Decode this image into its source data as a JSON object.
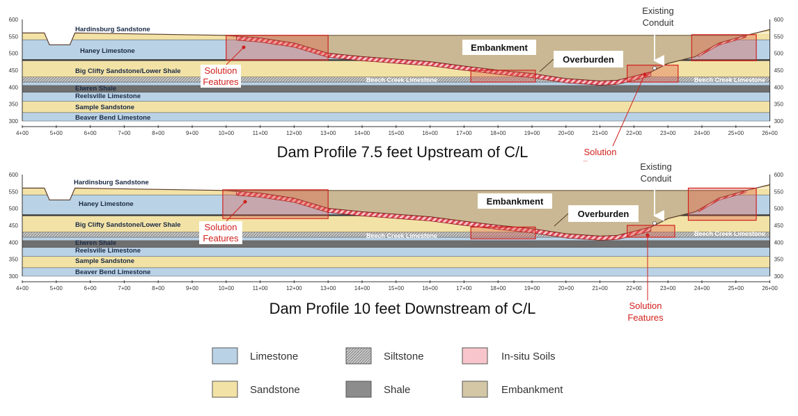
{
  "profiles": [
    {
      "title": "Dam Profile 7.5 feet Upstream of C/L",
      "layers": [
        "Hardinsburg Sandstone",
        "Haney Limestone",
        "Big Clifty Sandstone/Lower Shale",
        "Elwren Shale",
        "Reelsville Limestone",
        "Sample Sandstone",
        "Beaver Bend Limestone"
      ],
      "beech_creek": "Beech Creek Limestone",
      "embankment": "Embankment",
      "overburden": "Overburden",
      "conduit": [
        "Existing",
        "Conduit"
      ],
      "solution_left": [
        "Solution",
        "Features"
      ],
      "solution_right": [
        "Solution",
        "Features"
      ]
    },
    {
      "title": "Dam Profile 10 feet Downstream of C/L",
      "layers": [
        "Hardinsburg Sandstone",
        "Haney Limestone",
        "Big Clifty Sandstone/Lower Shale",
        "Elwren Shale",
        "Reelsville Limestone",
        "Sample Sandstone",
        "Beaver Bend Limestone"
      ],
      "beech_creek": "Beech Creek Limestone",
      "embankment": "Embankment",
      "overburden": "Overburden",
      "conduit": [
        "Existing",
        "Conduit"
      ],
      "solution_left": [
        "Solution",
        "Features"
      ],
      "solution_right": [
        "Solution",
        "Features"
      ]
    }
  ],
  "x_ticks": [
    "4+00",
    "5+00",
    "6+00",
    "7+00",
    "8+00",
    "9+00",
    "10+00",
    "11+00",
    "12+00",
    "13+00",
    "14+00",
    "15+00",
    "16+00",
    "17+00",
    "18+00",
    "19+00",
    "20+00",
    "21+00",
    "22+00",
    "23+00",
    "24+00",
    "25+00",
    "26+00"
  ],
  "y_ticks": [
    300,
    350,
    400,
    450,
    500,
    550,
    600
  ],
  "legend": [
    {
      "label": "Limestone",
      "color": "#b9d2e6"
    },
    {
      "label": "Siltstone",
      "color": "#d9d9d9"
    },
    {
      "label": "In-situ Soils",
      "color": "#f7c5cb"
    },
    {
      "label": "Sandstone",
      "color": "#f2e2a6"
    },
    {
      "label": "Shale",
      "color": "#8c8c8c"
    },
    {
      "label": "Embankment",
      "color": "#d3c7a6"
    }
  ],
  "colors": {
    "limestone": "#b9d2e6",
    "sandstone": "#f2e2a6",
    "shale": "#6f6f6f",
    "siltstone": "#b5b5b5",
    "embankment": "#c9b893",
    "insitu": "#e8606a",
    "highlight": "#d0201c"
  }
}
